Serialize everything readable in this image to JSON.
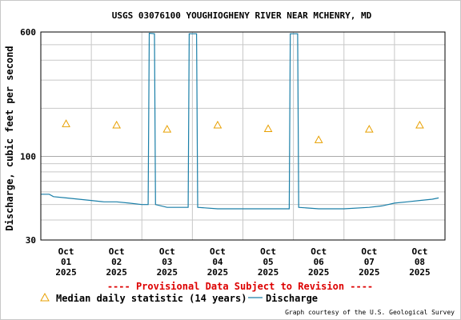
{
  "chart_data": {
    "type": "line",
    "title": "USGS 03076100 YOUGHIOGHENY RIVER NEAR MCHENRY, MD",
    "ylabel": "Discharge, cubic feet per second",
    "xlabel": "",
    "y_scale": "log",
    "ylim": [
      30,
      600
    ],
    "y_ticks": [
      "600",
      "100",
      "30"
    ],
    "x_range": [
      "2025-10-01",
      "2025-10-09"
    ],
    "x_ticks": [
      {
        "date": "2025-10-01",
        "label_month": "Oct",
        "label_day": "01",
        "label_year": "2025"
      },
      {
        "date": "2025-10-02",
        "label_month": "Oct",
        "label_day": "02",
        "label_year": "2025"
      },
      {
        "date": "2025-10-03",
        "label_month": "Oct",
        "label_day": "03",
        "label_year": "2025"
      },
      {
        "date": "2025-10-04",
        "label_month": "Oct",
        "label_day": "04",
        "label_year": "2025"
      },
      {
        "date": "2025-10-05",
        "label_month": "Oct",
        "label_day": "05",
        "label_year": "2025"
      },
      {
        "date": "2025-10-06",
        "label_month": "Oct",
        "label_day": "06",
        "label_year": "2025"
      },
      {
        "date": "2025-10-07",
        "label_month": "Oct",
        "label_day": "07",
        "label_year": "2025"
      },
      {
        "date": "2025-10-08",
        "label_month": "Oct",
        "label_day": "08",
        "label_year": "2025"
      }
    ],
    "grid": true,
    "series": [
      {
        "name": "Discharge",
        "style": "line",
        "color": "#1a7fa8",
        "points": [
          [
            "2025-10-01 00:00",
            58
          ],
          [
            "2025-10-01 04:00",
            58
          ],
          [
            "2025-10-01 06:00",
            56
          ],
          [
            "2025-10-01 12:00",
            55
          ],
          [
            "2025-10-01 18:00",
            54
          ],
          [
            "2025-10-02 00:00",
            53
          ],
          [
            "2025-10-02 06:00",
            52
          ],
          [
            "2025-10-02 12:00",
            52
          ],
          [
            "2025-10-02 18:00",
            51
          ],
          [
            "2025-10-03 00:00",
            50
          ],
          [
            "2025-10-03 03:00",
            50
          ],
          [
            "2025-10-03 03:30",
            590
          ],
          [
            "2025-10-03 06:00",
            585
          ],
          [
            "2025-10-03 06:30",
            50
          ],
          [
            "2025-10-03 12:00",
            48
          ],
          [
            "2025-10-03 18:00",
            48
          ],
          [
            "2025-10-03 22:00",
            48
          ],
          [
            "2025-10-03 22:30",
            585
          ],
          [
            "2025-10-04 02:00",
            585
          ],
          [
            "2025-10-04 02:30",
            48
          ],
          [
            "2025-10-04 12:00",
            47
          ],
          [
            "2025-10-05 00:00",
            47
          ],
          [
            "2025-10-05 12:00",
            47
          ],
          [
            "2025-10-05 22:00",
            47
          ],
          [
            "2025-10-05 22:30",
            585
          ],
          [
            "2025-10-06 02:00",
            585
          ],
          [
            "2025-10-06 02:30",
            48
          ],
          [
            "2025-10-06 12:00",
            47
          ],
          [
            "2025-10-07 00:00",
            47
          ],
          [
            "2025-10-07 12:00",
            48
          ],
          [
            "2025-10-07 18:00",
            49
          ],
          [
            "2025-10-08 00:00",
            51
          ],
          [
            "2025-10-08 06:00",
            52
          ],
          [
            "2025-10-08 12:00",
            53
          ],
          [
            "2025-10-08 18:00",
            54
          ],
          [
            "2025-10-08 21:00",
            55
          ]
        ]
      },
      {
        "name": "Median daily statistic (14 years)",
        "style": "triangle-marker",
        "color": "#e8a000",
        "points": [
          [
            "2025-10-01 12:00",
            160
          ],
          [
            "2025-10-02 12:00",
            157
          ],
          [
            "2025-10-03 12:00",
            148
          ],
          [
            "2025-10-04 12:00",
            157
          ],
          [
            "2025-10-05 12:00",
            149
          ],
          [
            "2025-10-06 12:00",
            127
          ],
          [
            "2025-10-07 12:00",
            148
          ],
          [
            "2025-10-08 12:00",
            157
          ]
        ]
      }
    ],
    "legend": {
      "placement": "bottom-left",
      "items": [
        {
          "label": "Median daily statistic (14 years)",
          "symbol": "triangle",
          "color": "#e8a000"
        },
        {
          "label": "Discharge",
          "symbol": "line",
          "color": "#1a7fa8"
        }
      ]
    },
    "annotations": {
      "provisional": "---- Provisional Data Subject to Revision ----",
      "provisional_color": "#dd0000",
      "courtesy": "Graph courtesy of the U.S. Geological Survey"
    }
  }
}
